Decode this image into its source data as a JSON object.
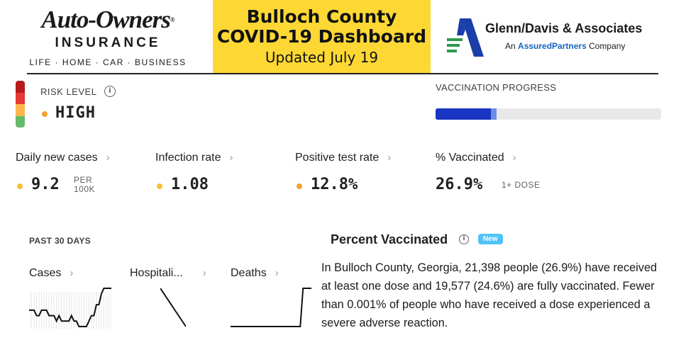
{
  "header": {
    "left_logo": {
      "wordmark": "Auto-Owners",
      "sub": "INSURANCE",
      "tagline": "LIFE · HOME · CAR · BUSINESS"
    },
    "title": {
      "line1": "Bulloch County",
      "line2": "COVID-19 Dashboard",
      "updated": "Updated July 19",
      "background": "#fdd835"
    },
    "right_logo": {
      "name": "Glenn/Davis & Associates",
      "tag_prefix": "An",
      "tag_brand": "AssuredPartners",
      "tag_suffix": "Company"
    }
  },
  "risk": {
    "label": "RISK LEVEL",
    "value": "HIGH",
    "dot_color": "#f4a12f",
    "scale_colors": [
      "#b71c1c",
      "#e53935",
      "#ffb74d",
      "#66bb6a"
    ]
  },
  "vaccination_progress": {
    "label": "VACCINATION PROGRESS",
    "one_dose_fraction": 0.269,
    "fully_fraction": 0.246,
    "colors": {
      "fully": "#1a35c2",
      "one_dose": "#6d8ce6",
      "track": "#e8e8e8"
    }
  },
  "metrics": [
    {
      "label": "Daily new cases",
      "value": "9.2",
      "unit_line1": "PER",
      "unit_line2": "100K",
      "dot_color": "#fbc02d"
    },
    {
      "label": "Infection rate",
      "value": "1.08",
      "dot_color": "#fbc02d"
    },
    {
      "label": "Positive test rate",
      "value": "12.8%",
      "dot_color": "#f4a12f"
    },
    {
      "label": "% Vaccinated",
      "value": "26.9%",
      "unit_line1": "1+ DOSE"
    }
  ],
  "past_30_days": {
    "label": "PAST 30 DAYS",
    "charts": [
      {
        "label": "Cases",
        "values": [
          4,
          4,
          4,
          3,
          3,
          4,
          4,
          4,
          3,
          3,
          3,
          2,
          3,
          2,
          2,
          2,
          2,
          3,
          2,
          2,
          1,
          1,
          1,
          1,
          2,
          3,
          3,
          5,
          5,
          7,
          8,
          8,
          8,
          8
        ]
      },
      {
        "label": "Hospitali...",
        "values": [
          8,
          7,
          6,
          5,
          4,
          3,
          2,
          1,
          0
        ]
      },
      {
        "label": "Deaths",
        "values": [
          0,
          0,
          0,
          0,
          0,
          0,
          0,
          0,
          0,
          0,
          0,
          0,
          0,
          0,
          0,
          0,
          0,
          0,
          0,
          0,
          0,
          0,
          0,
          0,
          0,
          0,
          10,
          10,
          10,
          10
        ]
      }
    ]
  },
  "percent_vaccinated": {
    "title": "Percent Vaccinated",
    "badge": "New",
    "text": "In Bulloch County, Georgia, 21,398 people (26.9%) have received at least one dose and 19,577 (24.6%) are fully vaccinated. Fewer than 0.001% of people who have received a dose experienced a severe adverse reaction."
  }
}
